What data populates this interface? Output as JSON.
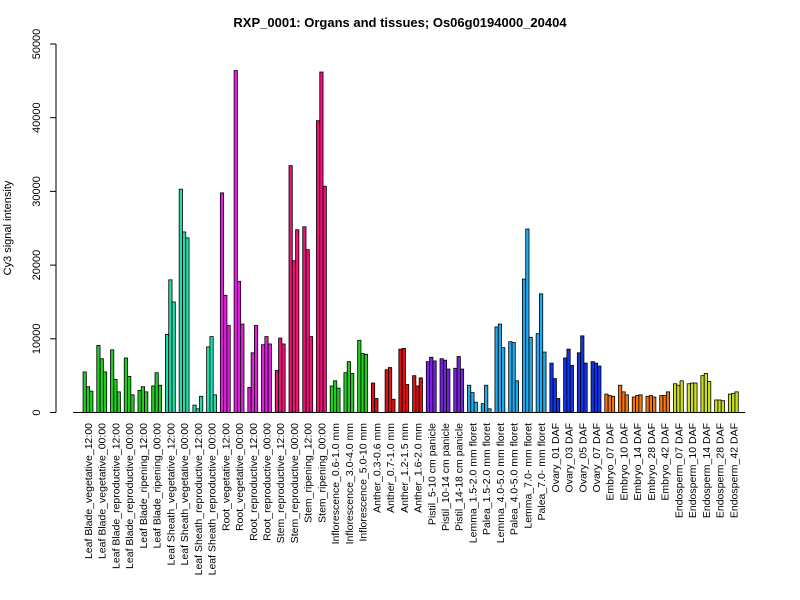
{
  "chart_data": {
    "type": "bar",
    "title": "RXP_0001: Organs and tissues; Os06g0194000_20404",
    "xlabel": "",
    "ylabel": "Cy3 signal intensity",
    "ylim": [
      0,
      50000
    ],
    "yticks": [
      0,
      10000,
      20000,
      30000,
      40000,
      50000
    ],
    "grid": false,
    "categories": [
      "Leaf Blade_vegetative_12:00",
      "Leaf Blade_vegetative_00:00",
      "Leaf Blade_reproductive_12:00",
      "Leaf Blade_reproductive_00:00",
      "Leaf Blade_ripening_12:00",
      "Leaf Blade_ripening_00:00",
      "Leaf Sheath_vegetative_12:00",
      "Leaf Sheath_vegetative_00:00",
      "Leaf Sheath_reproductive_12:00",
      "Leaf Sheath_reproductive_00:00",
      "Root_vegetative_12:00",
      "Root_vegetative_00:00",
      "Root_reproductive_12:00",
      "Root_reproductive_00:00",
      "Stem_reproductive_12:00",
      "Stem_reproductive_00:00",
      "Stem_ripening_12:00",
      "Stem_ripening_00:00",
      "Inflorescence_0.6-1.0 mm",
      "Inflorescence_3.0-4.0 mm",
      "Inflorescence_5.0-10 mm",
      "Anther_0.3-0.6 mm",
      "Anther_0.7-1.0 mm",
      "Anther_1.2-1.5 mm",
      "Anther_1.6-2.0 mm",
      "Pistil_5-10 cm panicle",
      "Pistil_10-14 cm panicle",
      "Pistil_14-18 cm panicle",
      "Lemma_1.5-2.0 mm floret",
      "Palea_1.5-2.0 mm floret",
      "Lemma_4.0-5.0 mm floret",
      "Palea_4.0-5.0 mm floret",
      "Lemma_7.0- mm floret",
      "Palea_7.0- mm floret",
      "Ovary_01 DAF",
      "Ovary_03 DAF",
      "Ovary_05 DAF",
      "Ovary_07 DAF",
      "Embryo_07 DAF",
      "Embryo_10 DAF",
      "Embryo_14 DAF",
      "Embryo_28 DAF",
      "Embryo_42 DAF",
      "Endosperm_07 DAF",
      "Endosperm_10 DAF",
      "Endosperm_14 DAF",
      "Endosperm_28 DAF",
      "Endosperm_42 DAF"
    ],
    "groups": [
      {
        "category_indices": [
          0,
          5
        ],
        "color": "#22cc22",
        "values": [
          [
            5500,
            3500,
            2900
          ],
          [
            9100,
            7300,
            5500
          ],
          [
            8500,
            4500,
            2800
          ],
          [
            7400,
            4900,
            2400
          ],
          [
            3000,
            3500,
            2800
          ],
          [
            3600,
            5400,
            3700
          ]
        ]
      },
      {
        "category_indices": [
          6,
          9
        ],
        "color": "#22ddaa",
        "values": [
          [
            10600,
            18000,
            15000
          ],
          [
            30300,
            24500,
            23700
          ],
          [
            1000,
            500,
            2200
          ],
          [
            8900,
            10300,
            2400
          ]
        ]
      },
      {
        "category_indices": [
          10,
          13
        ],
        "color": "#dd22dd",
        "values": [
          [
            29800,
            15900,
            11800
          ],
          [
            46400,
            17800,
            12000
          ],
          [
            3400,
            8100,
            11800
          ],
          [
            9200,
            10300,
            9300
          ]
        ]
      },
      {
        "category_indices": [
          14,
          17
        ],
        "color": "#ee1177",
        "values": [
          [
            5700,
            10100,
            9300
          ],
          [
            33500,
            20600,
            24800
          ],
          [
            25200,
            22100,
            10300
          ],
          [
            39600,
            46200,
            30700
          ]
        ]
      },
      {
        "category_indices": [
          18,
          20
        ],
        "color": "#22cc22",
        "values": [
          [
            3600,
            4300,
            3300
          ],
          [
            5400,
            6900,
            5300
          ],
          [
            9800,
            8000,
            7900
          ]
        ]
      },
      {
        "category_indices": [
          21,
          24
        ],
        "color": "#dd1111",
        "values": [
          [
            4000,
            1900,
            0
          ],
          [
            5800,
            6100,
            1800
          ],
          [
            8600,
            8700,
            3800
          ],
          [
            5000,
            3600,
            4700
          ]
        ]
      },
      {
        "category_indices": [
          25,
          27
        ],
        "color": "#7722dd",
        "values": [
          [
            6900,
            7500,
            7000
          ],
          [
            7300,
            7100,
            5900
          ],
          [
            6000,
            7600,
            5900
          ]
        ]
      },
      {
        "category_indices": [
          28,
          33
        ],
        "color": "#22aaee",
        "values": [
          [
            3700,
            2700,
            1400
          ],
          [
            1200,
            3700,
            500
          ],
          [
            11600,
            12000,
            8800
          ],
          [
            9600,
            9500,
            4300
          ],
          [
            18100,
            24900,
            10200
          ],
          [
            10700,
            16100,
            8200
          ]
        ]
      },
      {
        "category_indices": [
          34,
          37
        ],
        "color": "#1133ee",
        "values": [
          [
            6700,
            4600,
            1900
          ],
          [
            7400,
            8600,
            6400
          ],
          [
            8100,
            10400,
            6700
          ],
          [
            6900,
            6700,
            6300
          ]
        ]
      },
      {
        "category_indices": [
          38,
          42
        ],
        "color": "#ee7711",
        "values": [
          [
            2500,
            2300,
            2200
          ],
          [
            3700,
            2800,
            2400
          ],
          [
            2100,
            2300,
            2400
          ],
          [
            2200,
            2300,
            2100
          ],
          [
            2300,
            2300,
            2800
          ]
        ]
      },
      {
        "category_indices": [
          43,
          47
        ],
        "color": "#ccdd22",
        "values": [
          [
            3900,
            3700,
            4300
          ],
          [
            3900,
            4000,
            4000
          ],
          [
            5000,
            5300,
            4200
          ],
          [
            1700,
            1700,
            1600
          ],
          [
            2500,
            2600,
            2800
          ]
        ]
      }
    ]
  }
}
